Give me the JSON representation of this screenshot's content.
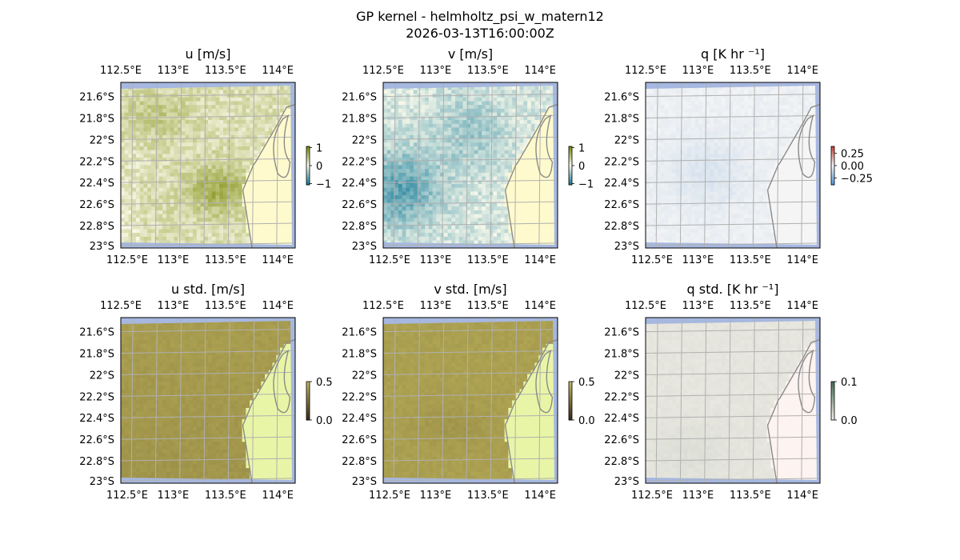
{
  "figure": {
    "title_line1": "GP kernel - helmholtz_psi_w_matern12",
    "title_line2": "2026-03-13T16:00:00Z"
  },
  "chart_data": [
    {
      "type": "heatmap",
      "title": "u [m/s]",
      "colormap": "olive-white-teal (diverging)",
      "colorbar": {
        "ticks": [
          "1",
          "0",
          "−1"
        ],
        "range": [
          -1,
          1
        ]
      },
      "x_ticks": [
        "112.5°E",
        "113°E",
        "113.5°E",
        "114°E"
      ],
      "y_ticks": [
        "21.6°S",
        "21.8°S",
        "22°S",
        "22.2°S",
        "22.4°S",
        "22.6°S",
        "22.8°S",
        "23°S"
      ],
      "lon_range": [
        112.5,
        114.2
      ],
      "lat_range": [
        -23.0,
        -21.45
      ],
      "gridlines": true,
      "field_summary": "mostly positive; strongest (~0.8) near 113.5°E, 22.5°S; land area masked in light yellow",
      "land_color": "#fffacd",
      "ocean_edge_color": "#a6b8e0"
    },
    {
      "type": "heatmap",
      "title": "v [m/s]",
      "colormap": "olive-white-teal (diverging)",
      "colorbar": {
        "ticks": [
          "1",
          "0",
          "−1"
        ],
        "range": [
          -1,
          1
        ]
      },
      "x_ticks": [
        "112.5°E",
        "113°E",
        "113.5°E",
        "114°E"
      ],
      "y_ticks": [
        "21.6°S",
        "21.8°S",
        "22°S",
        "22.2°S",
        "22.4°S",
        "22.6°S",
        "22.8°S",
        "23°S"
      ],
      "lon_range": [
        112.5,
        114.2
      ],
      "lat_range": [
        -23.0,
        -21.45
      ],
      "gridlines": true,
      "field_summary": "mostly negative; strongest (~-0.8) near 112.6°E, 22.5°S",
      "land_color": "#fffacd",
      "ocean_edge_color": "#a6b8e0"
    },
    {
      "type": "heatmap",
      "title": "q [K hr ⁻¹]",
      "colormap": "red-white-blue (diverging)",
      "colorbar": {
        "ticks": [
          "0.25",
          "0.00",
          "−0.25"
        ],
        "range": [
          -0.35,
          0.35
        ]
      },
      "x_ticks": [
        "112.5°E",
        "113°E",
        "113.5°E",
        "114°E"
      ],
      "y_ticks": [
        "21.6°S",
        "21.8°S",
        "22°S",
        "22.2°S",
        "22.4°S",
        "22.6°S",
        "22.8°S",
        "23°S"
      ],
      "lon_range": [
        112.5,
        114.2
      ],
      "lat_range": [
        -23.0,
        -21.45
      ],
      "gridlines": true,
      "field_summary": "near zero with faint negative (light blue) patches",
      "land_color": "#f5f5f5",
      "ocean_edge_color": "#a6b8e0"
    },
    {
      "type": "heatmap",
      "title": "u std. [m/s]",
      "colormap": "sequential (dark-olive to yellow-green)",
      "colorbar": {
        "ticks": [
          "0.5",
          "0.0"
        ],
        "range": [
          0,
          0.6
        ]
      },
      "x_ticks": [
        "112.5°E",
        "113°E",
        "113.5°E",
        "114°E"
      ],
      "y_ticks": [
        "21.6°S",
        "21.8°S",
        "22°S",
        "22.2°S",
        "22.4°S",
        "22.6°S",
        "22.8°S",
        "23°S"
      ],
      "lon_range": [
        112.5,
        114.2
      ],
      "lat_range": [
        -23.0,
        -21.45
      ],
      "gridlines": true,
      "field_summary": "fairly uniform ~0.4 over ocean",
      "land_color": "#e9f5a6",
      "ocean_edge_color": "#a6b8e0"
    },
    {
      "type": "heatmap",
      "title": "v std. [m/s]",
      "colormap": "sequential (dark-olive to yellow-green)",
      "colorbar": {
        "ticks": [
          "0.5",
          "0.0"
        ],
        "range": [
          0,
          0.6
        ]
      },
      "x_ticks": [
        "112.5°E",
        "113°E",
        "113.5°E",
        "114°E"
      ],
      "y_ticks": [
        "21.6°S",
        "21.8°S",
        "22°S",
        "22.2°S",
        "22.4°S",
        "22.6°S",
        "22.8°S",
        "23°S"
      ],
      "lon_range": [
        112.5,
        114.2
      ],
      "lat_range": [
        -23.0,
        -21.45
      ],
      "gridlines": true,
      "field_summary": "fairly uniform ~0.4 over ocean",
      "land_color": "#e9f5a6",
      "ocean_edge_color": "#a6b8e0"
    },
    {
      "type": "heatmap",
      "title": "q std. [K hr ⁻¹]",
      "colormap": "sequential (light grey-green)",
      "colorbar": {
        "ticks": [
          "0.1",
          "0.0"
        ],
        "range": [
          0,
          0.12
        ]
      },
      "x_ticks": [
        "112.5°E",
        "113°E",
        "113.5°E",
        "114°E"
      ],
      "y_ticks": [
        "21.6°S",
        "21.8°S",
        "22°S",
        "22.2°S",
        "22.4°S",
        "22.6°S",
        "22.8°S",
        "23°S"
      ],
      "lon_range": [
        112.5,
        114.2
      ],
      "lat_range": [
        -23.0,
        -21.45
      ],
      "gridlines": true,
      "field_summary": "low, near-uniform ~0.02 over ocean",
      "land_color": "#fdf3f0",
      "ocean_edge_color": "#a6b8e0"
    }
  ]
}
